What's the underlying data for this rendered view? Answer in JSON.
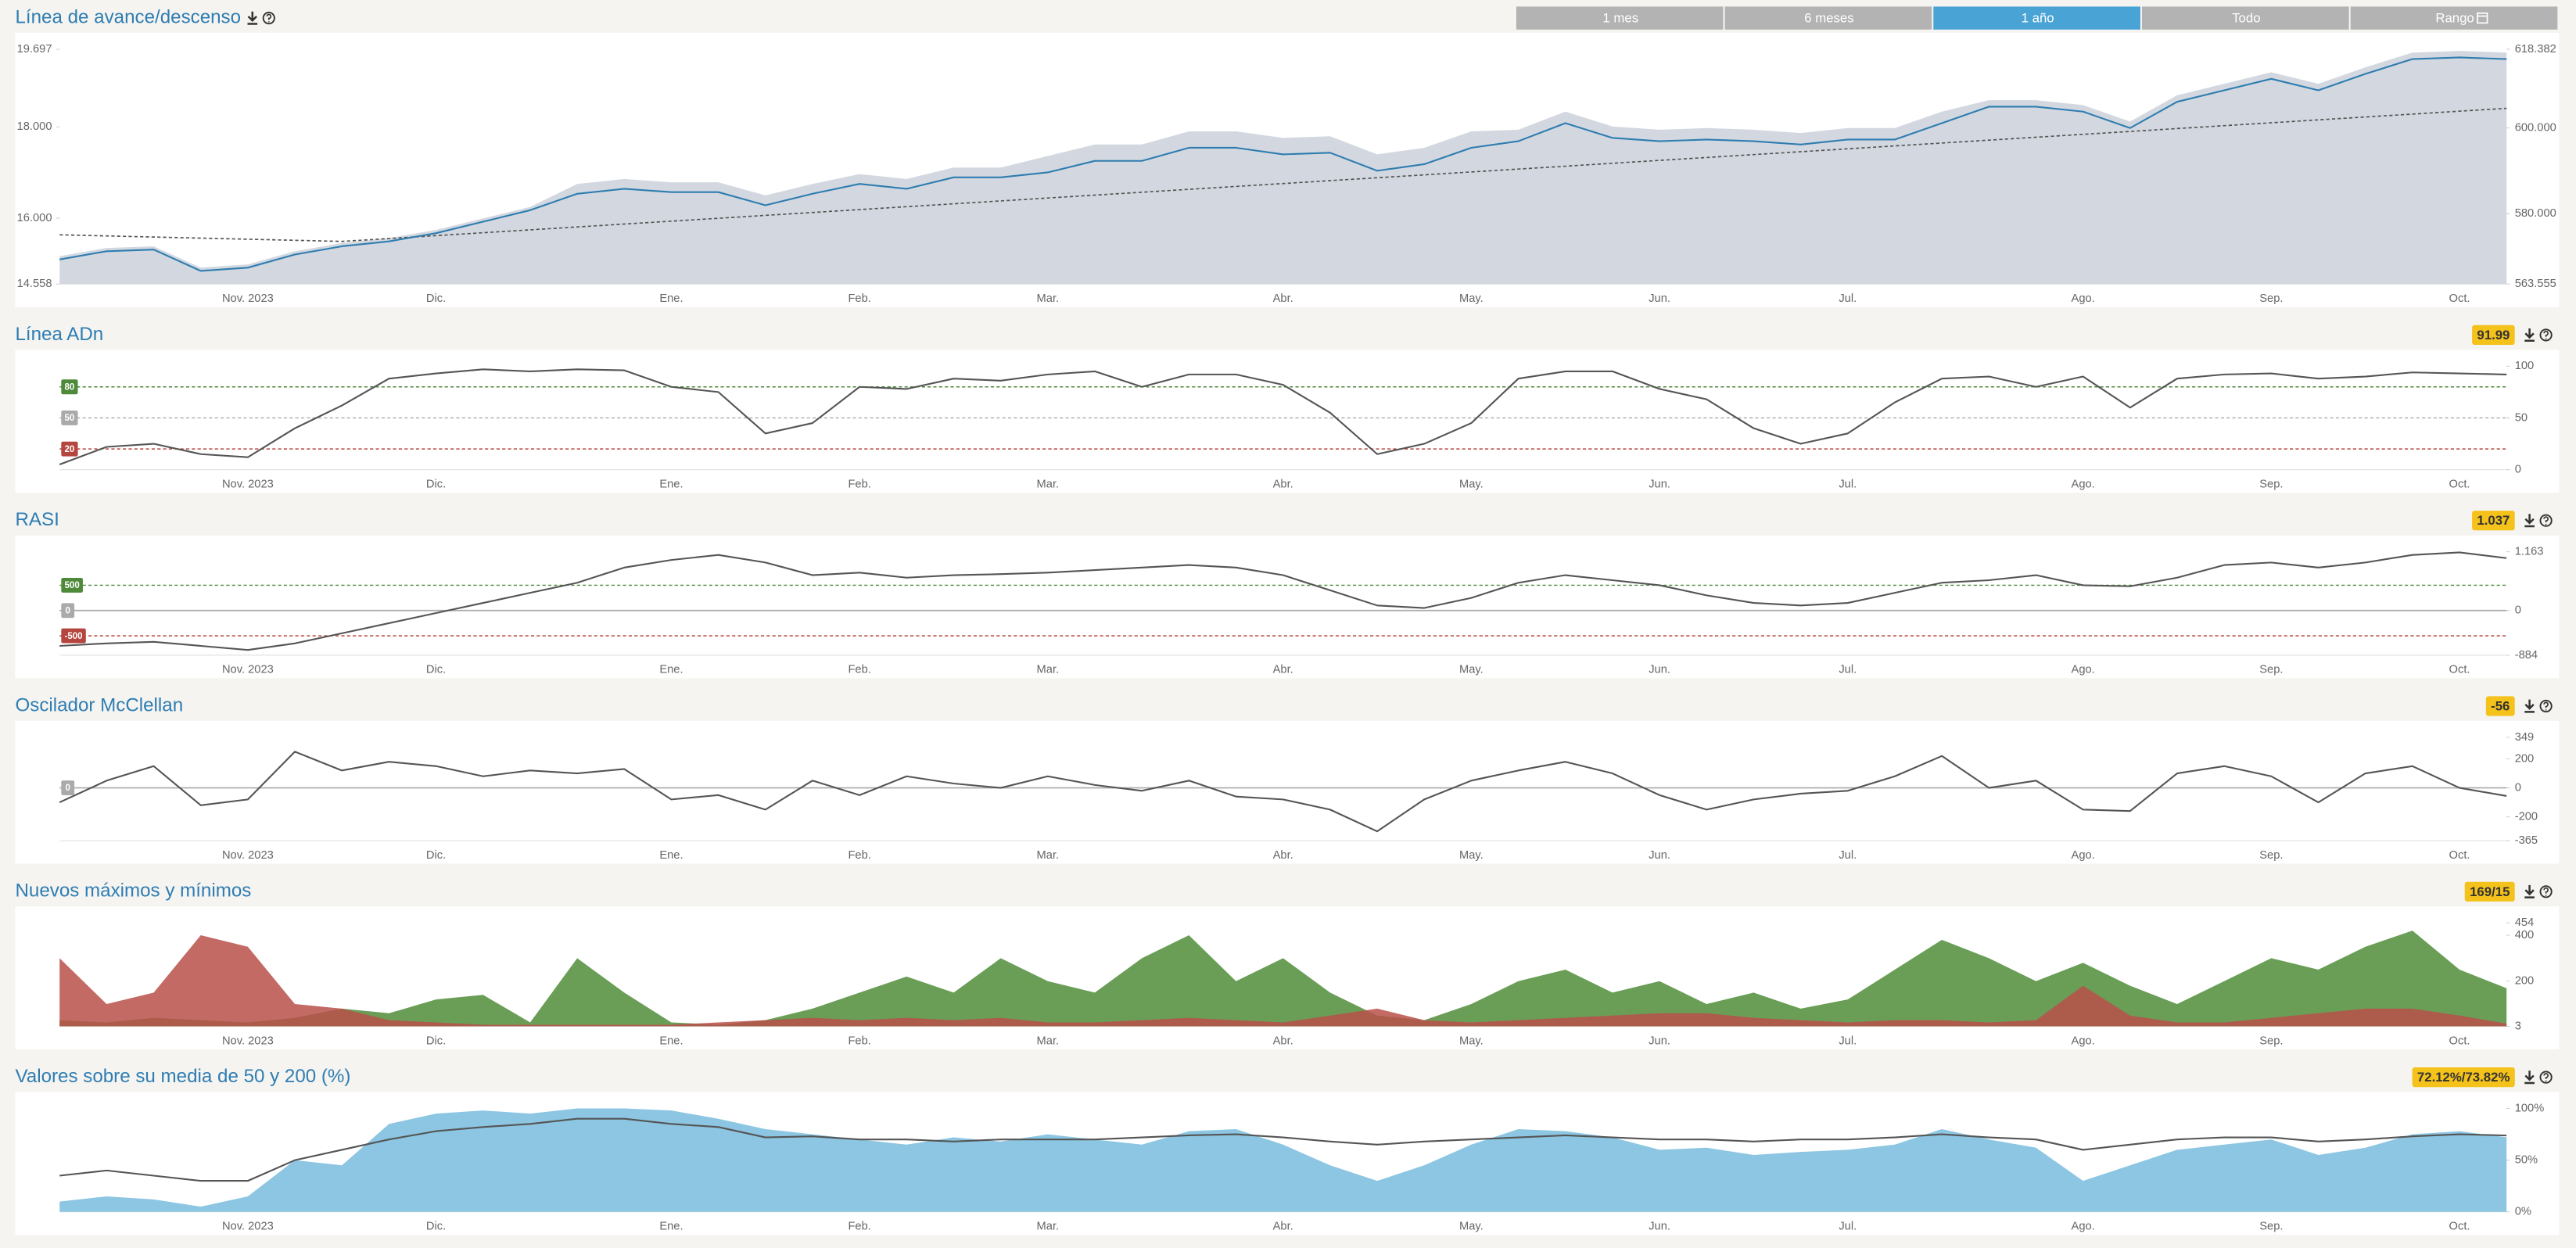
{
  "range_buttons": [
    "1 mes",
    "6 meses",
    "1 año",
    "Todo",
    "Rango"
  ],
  "active_range": 2,
  "chart_data": [
    {
      "type": "line",
      "title": "Línea de avance/descenso",
      "categories": [
        null,
        null,
        null,
        null,
        "Nov. 2023",
        null,
        null,
        null,
        "Dic.",
        null,
        null,
        null,
        null,
        "Ene.",
        null,
        null,
        null,
        "Feb.",
        null,
        null,
        null,
        "Mar.",
        null,
        null,
        null,
        null,
        "Abr.",
        null,
        null,
        null,
        "May.",
        null,
        null,
        null,
        "Jun.",
        null,
        null,
        null,
        "Jul.",
        null,
        null,
        null,
        null,
        "Ago.",
        null,
        null,
        null,
        "Sep.",
        null,
        null,
        null,
        "Oct.",
        null
      ],
      "ylim": [
        14558,
        19697
      ],
      "yticks": [
        {
          "value": 19697,
          "label": "19.697"
        },
        {
          "value": 18000,
          "label": "18.000"
        },
        {
          "value": 16000,
          "label": "16.000"
        },
        {
          "value": 14558,
          "label": "14.558"
        }
      ],
      "y2lim": [
        563555,
        618382
      ],
      "y2ticks": [
        {
          "value": 618382,
          "label": "618.382"
        },
        {
          "value": 600000,
          "label": "600.000"
        },
        {
          "value": 580000,
          "label": "580.000"
        },
        {
          "value": 563555,
          "label": "563.555"
        }
      ],
      "series": [
        {
          "kind": "area",
          "axis": "y2",
          "color": "#d3d8e0",
          "values": [
            570073,
            571990,
            572373,
            567389,
            568156,
            571223,
            573140,
            574290,
            576207,
            578891,
            581575,
            586942,
            588093,
            587326,
            587326,
            584259,
            586942,
            589243,
            588093,
            590777,
            590777,
            593461,
            596144,
            596144,
            599211,
            599211,
            597678,
            598061,
            593844,
            595377,
            599211,
            599595,
            603812,
            600361,
            599595,
            599978,
            599595,
            598828,
            599978,
            599978,
            603812,
            606496,
            606496,
            605346,
            601512,
            607646,
            610330,
            613014,
            610330,
            614164,
            617615,
            617998,
            617615
          ]
        },
        {
          "kind": "line",
          "dashed": true,
          "color": "#555555",
          "values": [
            15636,
            15612,
            15588,
            15564,
            15540,
            15516,
            15492,
            15555,
            15618,
            15682,
            15745,
            15808,
            15872,
            15935,
            15998,
            16062,
            16125,
            16188,
            16252,
            16315,
            16378,
            16442,
            16505,
            16568,
            16632,
            16695,
            16758,
            16822,
            16885,
            16948,
            17012,
            17075,
            17138,
            17202,
            17265,
            17328,
            17392,
            17455,
            17518,
            17582,
            17645,
            17708,
            17772,
            17835,
            17898,
            17962,
            18025,
            18088,
            18152,
            18215,
            18278,
            18342,
            18404
          ]
        },
        {
          "kind": "line",
          "color": "#2f7db0",
          "values": [
            15097,
            15277,
            15313,
            14846,
            14917,
            15205,
            15385,
            15492,
            15672,
            15924,
            16175,
            16535,
            16643,
            16571,
            16571,
            16283,
            16535,
            16750,
            16643,
            16894,
            16894,
            17002,
            17254,
            17254,
            17541,
            17541,
            17397,
            17433,
            17038,
            17182,
            17541,
            17685,
            18080,
            17757,
            17685,
            17721,
            17685,
            17613,
            17721,
            17721,
            18080,
            18440,
            18440,
            18332,
            17973,
            18547,
            18799,
            19050,
            18799,
            19158,
            19482,
            19518,
            19482
          ]
        }
      ]
    },
    {
      "type": "line",
      "title": "Línea ADn",
      "current_label": "91.99",
      "categories": [
        null,
        null,
        null,
        null,
        "Nov. 2023",
        null,
        null,
        null,
        "Dic.",
        null,
        null,
        null,
        null,
        "Ene.",
        null,
        null,
        null,
        "Feb.",
        null,
        null,
        null,
        "Mar.",
        null,
        null,
        null,
        null,
        "Abr.",
        null,
        null,
        null,
        "May.",
        null,
        null,
        null,
        "Jun.",
        null,
        null,
        null,
        "Jul.",
        null,
        null,
        null,
        null,
        "Ago.",
        null,
        null,
        null,
        "Sep.",
        null,
        null,
        null,
        "Oct.",
        null
      ],
      "ylim": [
        0,
        100
      ],
      "yticks": [
        100,
        50,
        0
      ],
      "levels": [
        80,
        50,
        20
      ],
      "level_colors": [
        "#4e8a3a",
        "#aaaaaa",
        "#b5463f"
      ],
      "series": [
        {
          "kind": "line",
          "color": "#555555",
          "values": [
            5,
            22,
            25,
            15,
            12,
            40,
            62,
            88,
            93,
            97,
            95,
            97,
            96,
            80,
            75,
            35,
            45,
            80,
            78,
            88,
            86,
            92,
            95,
            80,
            92,
            92,
            82,
            55,
            15,
            25,
            45,
            88,
            95,
            95,
            78,
            68,
            40,
            25,
            35,
            65,
            88,
            90,
            80,
            90,
            60,
            88,
            92,
            93,
            88,
            90,
            94,
            93,
            91.99
          ]
        }
      ]
    },
    {
      "type": "line",
      "title": "RASI",
      "current_label": "1.037",
      "categories": [
        null,
        null,
        null,
        null,
        "Nov. 2023",
        null,
        null,
        null,
        "Dic.",
        null,
        null,
        null,
        null,
        "Ene.",
        null,
        null,
        null,
        "Feb.",
        null,
        null,
        null,
        "Mar.",
        null,
        null,
        null,
        null,
        "Abr.",
        null,
        null,
        null,
        "May.",
        null,
        null,
        null,
        "Jun.",
        null,
        null,
        null,
        "Jul.",
        null,
        null,
        null,
        null,
        "Ago.",
        null,
        null,
        null,
        "Sep.",
        null,
        null,
        null,
        "Oct.",
        null
      ],
      "ylim": [
        -884,
        1163
      ],
      "yticks": [
        {
          "value": 1163,
          "label": "1.163"
        },
        0,
        -884
      ],
      "levels": [
        500,
        0,
        -500
      ],
      "level_colors": [
        "#4e8a3a",
        "#aaaaaa",
        "#b5463f"
      ],
      "series": [
        {
          "kind": "line",
          "color": "#555555",
          "values": [
            -700,
            -650,
            -620,
            -700,
            -780,
            -650,
            -450,
            -250,
            -50,
            150,
            350,
            550,
            850,
            1000,
            1100,
            950,
            700,
            750,
            650,
            700,
            720,
            750,
            800,
            850,
            900,
            850,
            700,
            400,
            100,
            50,
            250,
            550,
            700,
            600,
            500,
            300,
            150,
            100,
            150,
            350,
            550,
            600,
            700,
            500,
            480,
            650,
            900,
            950,
            850,
            950,
            1100,
            1150,
            1037
          ]
        }
      ]
    },
    {
      "type": "line",
      "title": "Oscilador McClellan",
      "current_label": "-56",
      "categories": [
        null,
        null,
        null,
        null,
        "Nov. 2023",
        null,
        null,
        null,
        "Dic.",
        null,
        null,
        null,
        null,
        "Ene.",
        null,
        null,
        null,
        "Feb.",
        null,
        null,
        null,
        "Mar.",
        null,
        null,
        null,
        null,
        "Abr.",
        null,
        null,
        null,
        "May.",
        null,
        null,
        null,
        "Jun.",
        null,
        null,
        null,
        "Jul.",
        null,
        null,
        null,
        null,
        "Ago.",
        null,
        null,
        null,
        "Sep.",
        null,
        null,
        null,
        "Oct.",
        null
      ],
      "ylim": [
        -365,
        349
      ],
      "yticks": [
        349,
        200,
        0,
        -200,
        -365
      ],
      "levels": [
        0
      ],
      "level_colors": [
        "#aaaaaa"
      ],
      "series": [
        {
          "kind": "line",
          "color": "#555555",
          "values": [
            -100,
            50,
            150,
            -120,
            -80,
            250,
            120,
            180,
            150,
            80,
            120,
            100,
            130,
            -80,
            -50,
            -150,
            50,
            -50,
            80,
            30,
            0,
            80,
            20,
            -20,
            50,
            -60,
            -80,
            -150,
            -300,
            -80,
            50,
            120,
            180,
            100,
            -50,
            -150,
            -80,
            -40,
            -20,
            80,
            220,
            0,
            50,
            -150,
            -160,
            100,
            150,
            80,
            -100,
            100,
            150,
            0,
            -56
          ]
        }
      ]
    },
    {
      "type": "area",
      "title": "Nuevos máximos y mínimos",
      "current_label": "169/15",
      "categories": [
        null,
        null,
        null,
        null,
        "Nov. 2023",
        null,
        null,
        null,
        "Dic.",
        null,
        null,
        null,
        null,
        "Ene.",
        null,
        null,
        null,
        "Feb.",
        null,
        null,
        null,
        "Mar.",
        null,
        null,
        null,
        null,
        "Abr.",
        null,
        null,
        null,
        "May.",
        null,
        null,
        null,
        "Jun.",
        null,
        null,
        null,
        "Jul.",
        null,
        null,
        null,
        null,
        "Ago.",
        null,
        null,
        null,
        "Sep.",
        null,
        null,
        null,
        "Oct.",
        null
      ],
      "ylim": [
        3,
        454
      ],
      "yticks": [
        454,
        400,
        200,
        3
      ],
      "series": [
        {
          "kind": "area",
          "color": "#6a9e57",
          "values": [
            30,
            20,
            40,
            30,
            20,
            40,
            80,
            60,
            120,
            140,
            20,
            300,
            150,
            20,
            10,
            30,
            80,
            150,
            220,
            150,
            300,
            200,
            150,
            300,
            400,
            200,
            300,
            150,
            50,
            30,
            100,
            200,
            250,
            150,
            200,
            100,
            150,
            80,
            120,
            250,
            380,
            300,
            200,
            280,
            180,
            100,
            200,
            300,
            250,
            350,
            420,
            250,
            169
          ]
        },
        {
          "kind": "area",
          "color": "#b8504a",
          "values": [
            300,
            100,
            150,
            400,
            350,
            100,
            80,
            30,
            20,
            10,
            10,
            10,
            10,
            10,
            20,
            30,
            40,
            30,
            40,
            30,
            40,
            20,
            20,
            30,
            40,
            30,
            20,
            50,
            80,
            30,
            20,
            30,
            40,
            50,
            60,
            60,
            40,
            30,
            20,
            30,
            30,
            20,
            30,
            180,
            50,
            20,
            20,
            40,
            60,
            80,
            80,
            50,
            15
          ]
        }
      ]
    },
    {
      "type": "line",
      "title": "Valores sobre su media de 50 y 200 (%)",
      "current_label": "72.12%/73.82%",
      "categories": [
        null,
        null,
        null,
        null,
        "Nov. 2023",
        null,
        null,
        null,
        "Dic.",
        null,
        null,
        null,
        null,
        "Ene.",
        null,
        null,
        null,
        "Feb.",
        null,
        null,
        null,
        "Mar.",
        null,
        null,
        null,
        null,
        "Abr.",
        null,
        null,
        null,
        "May.",
        null,
        null,
        null,
        "Jun.",
        null,
        null,
        null,
        "Jul.",
        null,
        null,
        null,
        null,
        "Ago.",
        null,
        null,
        null,
        "Sep.",
        null,
        null,
        null,
        "Oct.",
        null
      ],
      "ylim": [
        0,
        100
      ],
      "yticks": [
        {
          "value": 100,
          "label": "100%"
        },
        {
          "value": 50,
          "label": "50%"
        },
        {
          "value": 0,
          "label": "0%"
        }
      ],
      "series": [
        {
          "kind": "area",
          "color": "#8cc6e2",
          "values": [
            10,
            15,
            12,
            5,
            15,
            50,
            45,
            85,
            95,
            98,
            95,
            100,
            100,
            98,
            90,
            80,
            75,
            70,
            65,
            72,
            68,
            75,
            70,
            65,
            78,
            80,
            65,
            45,
            30,
            45,
            65,
            80,
            78,
            72,
            60,
            62,
            55,
            58,
            60,
            65,
            80,
            70,
            62,
            30,
            45,
            60,
            65,
            70,
            55,
            62,
            75,
            78,
            72.12
          ]
        },
        {
          "kind": "line",
          "color": "#555555",
          "values": [
            35,
            40,
            35,
            30,
            30,
            50,
            60,
            70,
            78,
            82,
            85,
            90,
            90,
            85,
            82,
            72,
            73,
            70,
            70,
            68,
            70,
            70,
            70,
            72,
            74,
            75,
            72,
            68,
            65,
            68,
            70,
            72,
            74,
            72,
            70,
            70,
            68,
            70,
            70,
            72,
            75,
            72,
            70,
            60,
            65,
            70,
            72,
            72,
            68,
            70,
            73,
            75,
            73.82
          ]
        }
      ]
    }
  ]
}
